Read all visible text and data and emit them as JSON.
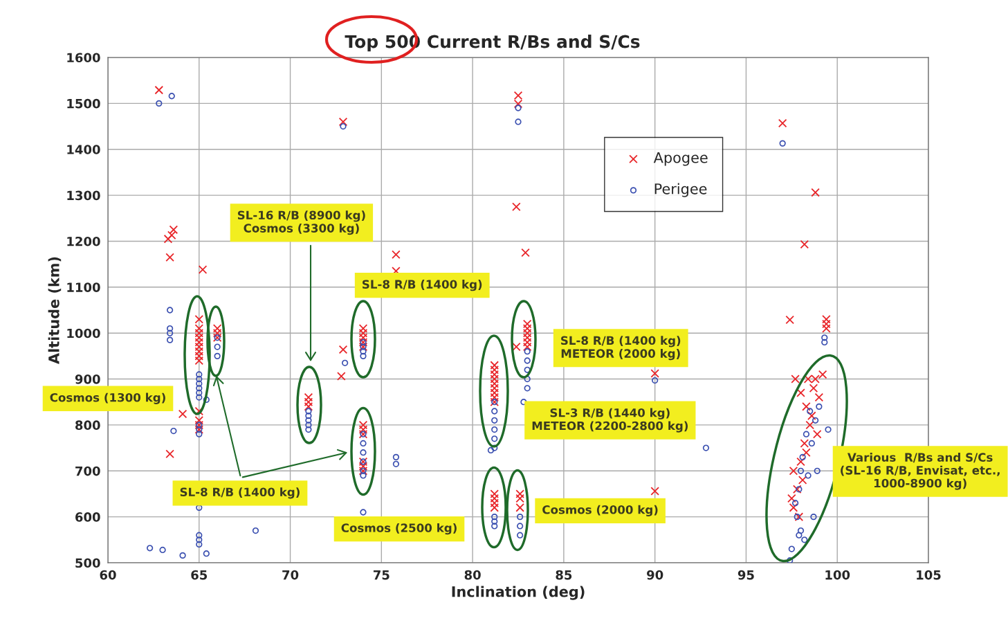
{
  "chart_data": {
    "type": "scatter",
    "title": "Top 500 Current R/Bs and S/Cs",
    "xlabel": "Inclination (deg)",
    "ylabel": "Altitude (km)",
    "xlim": [
      60,
      105
    ],
    "xticks": [
      60,
      65,
      70,
      75,
      80,
      85,
      90,
      95,
      100,
      105
    ],
    "ylim": [
      500,
      1600
    ],
    "yticks": [
      500,
      600,
      700,
      800,
      900,
      1000,
      1100,
      1200,
      1300,
      1400,
      1500,
      1600
    ],
    "grid": true,
    "legend": "top right",
    "series": [
      {
        "name": "Apogee",
        "color": "#e8262a",
        "marker": "cross",
        "x": [
          62.8,
          63.5,
          63.6,
          63.3,
          63.4,
          63.4,
          64.1,
          65.2,
          65,
          65,
          65,
          65,
          65,
          65,
          65,
          65,
          65,
          65,
          65,
          65,
          65,
          66,
          66,
          66,
          71,
          71,
          71,
          72.9,
          72.9,
          72.8,
          74,
          74,
          74,
          74,
          74,
          74,
          74,
          74,
          74,
          74,
          74,
          75.8,
          75.8,
          81.2,
          81.2,
          81.2,
          81.2,
          81.2,
          81.2,
          81.2,
          81.2,
          81.2,
          81.2,
          81.2,
          81.2,
          81.2,
          82.5,
          82.5,
          82.4,
          82.9,
          82.4,
          82.6,
          82.6,
          82.6,
          83,
          83,
          83,
          83,
          83,
          83,
          90,
          90,
          97,
          97.4,
          98.8,
          98.2,
          99.4,
          99.4,
          99.4,
          97.7,
          98.0,
          98.3,
          98.5,
          98.2,
          98.0,
          97.6,
          97.8,
          97.5,
          97.6,
          97.9,
          98.4,
          98.7,
          99.0,
          98.6,
          98.9,
          98.3,
          98.1,
          98.8,
          99.2
        ],
        "values": [
          1529,
          1213,
          1225,
          1205,
          1165,
          737,
          824,
          1138,
          1030,
          1010,
          1000,
          990,
          980,
          970,
          960,
          950,
          940,
          830,
          810,
          800,
          790,
          1010,
          1000,
          990,
          860,
          850,
          840,
          1460,
          964,
          906,
          1010,
          1000,
          990,
          980,
          970,
          800,
          790,
          780,
          720,
          710,
          700,
          1171,
          1135,
          930,
          920,
          910,
          900,
          890,
          880,
          870,
          860,
          850,
          650,
          640,
          630,
          620,
          1517,
          1499,
          1275,
          1175,
          970,
          650,
          640,
          620,
          1020,
          1010,
          1000,
          990,
          980,
          970,
          912,
          656,
          1457,
          1029,
          1306,
          1193,
          1030,
          1020,
          1010,
          900,
          870,
          840,
          800,
          760,
          720,
          700,
          660,
          640,
          620,
          600,
          900,
          880,
          860,
          820,
          780,
          740,
          680,
          900,
          910
        ]
      },
      {
        "name": "Perigee",
        "color": "#3a4fb0",
        "marker": "circle",
        "x": [
          62.8,
          63.5,
          63.4,
          63.4,
          63.4,
          63.4,
          63.6,
          62.3,
          63.0,
          64.1,
          65.4,
          65,
          65,
          65,
          65,
          65,
          65,
          65,
          65,
          65,
          65,
          65,
          65,
          65,
          65.4,
          66,
          66,
          66,
          68.1,
          71,
          71,
          71,
          71,
          71,
          73,
          72.9,
          74,
          74,
          74,
          74,
          74,
          74,
          74,
          74,
          74,
          74,
          74,
          75.8,
          75.8,
          81.2,
          81.2,
          81.2,
          81.2,
          81.2,
          81.2,
          81.2,
          81.2,
          81.2,
          81.0,
          82.5,
          82.5,
          83,
          83,
          83,
          83,
          83,
          82.8,
          82.6,
          82.6,
          82.6,
          90,
          92.8,
          97,
          99.3,
          99.3,
          99.5,
          98.5,
          98.8,
          98.3,
          98.6,
          98.1,
          98.0,
          98.4,
          97.9,
          97.7,
          97.8,
          98.0,
          97.9,
          98.2,
          97.5,
          97.4,
          98.9,
          99.0,
          98.7
        ],
        "values": [
          1500,
          1516,
          1050,
          1010,
          1000,
          985,
          787,
          532,
          528,
          516,
          520,
          910,
          900,
          890,
          880,
          870,
          860,
          800,
          790,
          780,
          620,
          560,
          550,
          540,
          855,
          990,
          970,
          950,
          570,
          830,
          820,
          810,
          800,
          790,
          935,
          1450,
          980,
          970,
          960,
          950,
          780,
          760,
          740,
          720,
          700,
          690,
          610,
          730,
          715,
          850,
          830,
          810,
          790,
          770,
          750,
          600,
          590,
          580,
          745,
          1490,
          1460,
          960,
          940,
          920,
          900,
          880,
          850,
          600,
          580,
          560,
          897,
          750,
          1413,
          990,
          980,
          790,
          830,
          810,
          780,
          760,
          730,
          700,
          690,
          660,
          630,
          600,
          570,
          560,
          550,
          530,
          505,
          700,
          840,
          600
        ]
      }
    ],
    "annotations": [
      "SL-16 R/B (8900 kg)\nCosmos (3300 kg)",
      "SL-8 R/B (1400 kg)",
      "SL-8 R/B (1400 kg)\nMETEOR (2000 kg)",
      "Cosmos (1300 kg)",
      "SL-3 R/B (1440 kg)\nMETEOR (2200-2800 kg)",
      "Various  R/Bs and S/Cs\n(SL-16 R/B, Envisat, etc.,\n1000-8900 kg)",
      "SL-8 R/B (1400 kg)",
      "Cosmos (2500 kg)",
      "Cosmos (2000 kg)"
    ]
  }
}
